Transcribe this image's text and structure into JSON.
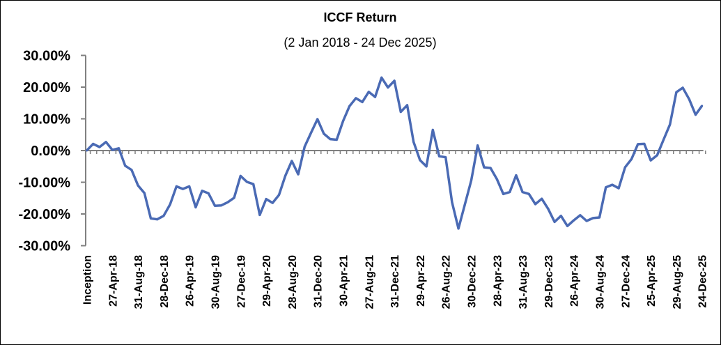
{
  "chart_data": {
    "type": "line",
    "title": "ICCF Return",
    "subtitle": "(2 Jan 2018 - 24 Dec 2025)",
    "xlabel": "",
    "ylabel": "",
    "ylim": [
      -30,
      30
    ],
    "yticks": [
      30,
      20,
      10,
      0,
      -10,
      -20,
      -30
    ],
    "ytick_labels": [
      "30.00%",
      "20.00%",
      "10.00%",
      "0.00%",
      "-10.00%",
      "-20.00%",
      "-30.00%"
    ],
    "grid": false,
    "legend": "none",
    "line_color": "#4A6AB4",
    "x_tick_every": 4,
    "x_tick_labels": [
      "Inception",
      "27-Apr-18",
      "31-Aug-18",
      "28-Dec-18",
      "26-Apr-19",
      "30-Aug-19",
      "27-Dec-19",
      "29-Apr-20",
      "28-Aug-20",
      "31-Dec-20",
      "30-Apr-21",
      "27-Aug-21",
      "31-Dec-21",
      "29-Apr-22",
      "26-Aug-22",
      "30-Dec-22",
      "28-Apr-23",
      "31-Aug-23",
      "29-Dec-23",
      "26-Apr-24",
      "30-Aug-24",
      "27-Dec-24",
      "25-Apr-25",
      "29-Aug-25",
      "24-Dec-25"
    ],
    "series": [
      {
        "name": "ICCF Return",
        "values": [
          0,
          2.1,
          1.1,
          2.7,
          0.2,
          0.7,
          -4.8,
          -6.1,
          -11,
          -13.4,
          -21.4,
          -21.7,
          -20.6,
          -17,
          -11.3,
          -12.1,
          -11.3,
          -17.9,
          -12.7,
          -13.5,
          -17.4,
          -17.3,
          -16.3,
          -14.9,
          -8.0,
          -9.9,
          -10.6,
          -20.3,
          -15.3,
          -16.5,
          -14.0,
          -7.9,
          -3.3,
          -7.5,
          1.2,
          5.6,
          9.9,
          5.3,
          3.6,
          3.4,
          9.3,
          14.0,
          16.5,
          15.3,
          18.5,
          16.9,
          23.0,
          19.9,
          22.0,
          12.2,
          14.3,
          2.7,
          -3.0,
          -5.0,
          6.5,
          -1.8,
          -2.1,
          -16.3,
          -24.6,
          -17.0,
          -9.4,
          1.6,
          -5.3,
          -5.5,
          -9.0,
          -13.7,
          -13.1,
          -7.8,
          -13.1,
          -13.7,
          -16.9,
          -15.2,
          -18.4,
          -22.5,
          -20.6,
          -23.8,
          -22.0,
          -20.4,
          -22.2,
          -21.3,
          -21.1,
          -11.6,
          -10.8,
          -11.9,
          -5.3,
          -2.7,
          2.0,
          2.1,
          -3.1,
          -1.5,
          3.4,
          8.2,
          18.4,
          19.8,
          16.2,
          11.3,
          14.1
        ]
      }
    ]
  }
}
